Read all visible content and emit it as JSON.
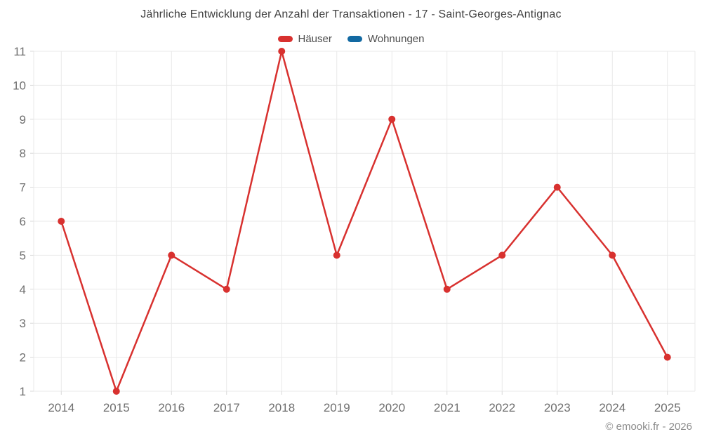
{
  "header": {
    "title": "Jährliche Entwicklung der Anzahl der Transaktionen - 17 - Saint-Georges-Antignac"
  },
  "legend": {
    "items": [
      {
        "label": "Häuser",
        "color": "#d8312f"
      },
      {
        "label": "Wohnungen",
        "color": "#1269a2"
      }
    ]
  },
  "footer": {
    "copyright": "© emooki.fr - 2026"
  },
  "chart_data": {
    "type": "line",
    "title": "Jährliche Entwicklung der Anzahl der Transaktionen - 17 - Saint-Georges-Antignac",
    "categories": [
      "2014",
      "2015",
      "2016",
      "2017",
      "2018",
      "2019",
      "2020",
      "2021",
      "2022",
      "2023",
      "2024",
      "2025"
    ],
    "series": [
      {
        "name": "Häuser",
        "color": "#d8312f",
        "values": [
          6,
          1,
          5,
          4,
          11,
          5,
          9,
          4,
          5,
          7,
          5,
          2
        ]
      },
      {
        "name": "Wohnungen",
        "color": "#1269a2",
        "values": [
          null,
          null,
          null,
          null,
          null,
          null,
          null,
          null,
          null,
          null,
          null,
          null
        ]
      }
    ],
    "xlabel": "",
    "ylabel": "",
    "ylim": [
      1,
      11
    ],
    "yticks": [
      1,
      2,
      3,
      4,
      5,
      6,
      7,
      8,
      9,
      10,
      11
    ],
    "grid": true,
    "legend_position": "top",
    "grid_color": "#e9e9e9",
    "tick_color": "#d9d9d9",
    "axis_text_color": "#6f6f6f"
  }
}
